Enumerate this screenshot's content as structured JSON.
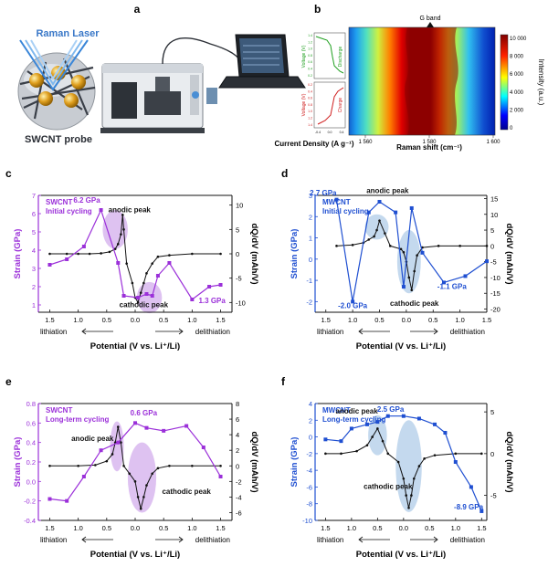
{
  "panel_labels": {
    "a": "a",
    "b": "b",
    "c": "c",
    "d": "d",
    "e": "e",
    "f": "f"
  },
  "panel_a": {
    "laser_label": "Raman Laser",
    "probe_label": "SWCNT probe",
    "colors": {
      "laser": "#3a86d8",
      "particle": "#e0a020"
    }
  },
  "panel_b": {
    "peak_label": "G band",
    "xlabel": "Raman shift (cm⁻¹)",
    "colorbar_label": "Intensity (a.u.)",
    "left_xlabel": "Current Density (A g⁻¹)",
    "voltage_label": "Voltage (V)",
    "discharge_label": "Discharge",
    "charge_label": "Charge",
    "xticks": [
      "1 560",
      "1 580",
      "1 600"
    ],
    "colorbar_ticks": [
      "0",
      "2 000",
      "4 000",
      "6 000",
      "8 000",
      "10 000"
    ],
    "left_ticks": [
      "-0.4",
      "0.0",
      "0.4"
    ],
    "voltage_ticks_top": [
      "1.4",
      "1.2",
      "1.0",
      "0.8",
      "0.6",
      "0.4",
      "0.2"
    ],
    "voltage_ticks_bottom": [
      "0.2",
      "0.4",
      "0.6",
      "0.8",
      "1.0",
      "1.2",
      "1.4"
    ],
    "cb_ticks": [
      "0",
      "2000",
      "4000",
      "6000",
      "8000",
      "10000"
    ],
    "colormap": "jet"
  },
  "chart_data": [
    {
      "panel": "c",
      "type": "line",
      "title": "SWCNT",
      "subtitle": "Initial cycling",
      "xlabel": "Potential (V vs. Li⁺/Li)",
      "ylabel_left": "Strain (GPa)",
      "ylabel_right": "dQ/dV (mAh/V)",
      "xlim": [
        1.7,
        -1.7
      ],
      "ylim_left": [
        0.6,
        7
      ],
      "ylim_right": [
        -12,
        12
      ],
      "xticks_labels": [
        "1.5",
        "1.0",
        "0.5",
        "0.0",
        "0.5",
        "1.0",
        "1.5"
      ],
      "yticks_left": [
        "1",
        "2",
        "3",
        "4",
        "5",
        "6",
        "7"
      ],
      "yticks_right": [
        "-10",
        "-5",
        "0",
        "5",
        "10"
      ],
      "direction_labels": {
        "left": "lithiation",
        "right": "delithiation"
      },
      "annotations": [
        "anodic peak",
        "6.2 GPa",
        "1.3 GPa",
        "cathodic peak"
      ],
      "strain_color": "#9b30d9",
      "strain": {
        "x": [
          -1.5,
          -1.3,
          -1.0,
          -0.6,
          -0.4,
          -0.3,
          -0.2,
          -0.05,
          0.2,
          0.3,
          0.6,
          0.9,
          1.2,
          1.5
        ],
        "y": [
          2.1,
          2.0,
          1.3,
          3.3,
          2.6,
          1.5,
          1.6,
          1.4,
          1.5,
          3.3,
          6.2,
          4.2,
          3.5,
          3.2
        ]
      },
      "dqdv": {
        "x": [
          -1.5,
          -1.0,
          -0.6,
          -0.4,
          -0.3,
          -0.2,
          -0.15,
          -0.1,
          -0.05,
          0.0,
          0.05,
          0.15,
          0.2,
          0.22,
          0.25,
          0.3,
          0.35,
          0.45,
          0.6,
          0.8,
          1.0,
          1.2,
          1.5
        ],
        "y": [
          0,
          0,
          -0.3,
          -0.6,
          -2,
          -4,
          -6,
          -8,
          -10,
          -9,
          -6,
          -2,
          5,
          8,
          4,
          2,
          1,
          0.4,
          0.1,
          0,
          0,
          0,
          0
        ]
      }
    },
    {
      "panel": "d",
      "type": "line",
      "title": "MWCNT",
      "subtitle": "Initial cycling",
      "xlabel": "Potential (V vs. Li⁺/Li)",
      "ylabel_left": "Strain (GPa)",
      "ylabel_right": "dQ/dV (mAh/V)",
      "xlim": [
        1.7,
        -1.5
      ],
      "ylim_left": [
        -2.5,
        3
      ],
      "ylim_right": [
        -21,
        16
      ],
      "xticks_labels": [
        "1.5",
        "1.0",
        "0.5",
        "0.0",
        "0.5",
        "1.0",
        "1.5"
      ],
      "yticks_left": [
        "-2",
        "-1",
        "0",
        "1",
        "2",
        "3"
      ],
      "yticks_right": [
        "-20",
        "-15",
        "-10",
        "-5",
        "0",
        "5",
        "10",
        "15"
      ],
      "direction_labels": {
        "left": "lithiation",
        "right": "delithiation"
      },
      "annotations": [
        "anodic peak",
        "2.7 GPa",
        "-1.1 GPa",
        "-2.0 GPa",
        "cathodic peak"
      ],
      "strain_color": "#1f4fd1",
      "strain": {
        "x": [
          -1.5,
          -1.1,
          -0.7,
          -0.3,
          -0.1,
          0.05,
          0.2,
          0.5,
          0.7,
          1.0,
          1.3
        ],
        "y": [
          -0.1,
          -0.8,
          -1.1,
          0.3,
          2.4,
          -1.3,
          2.2,
          2.7,
          2.2,
          -2.0,
          2.8
        ]
      },
      "dqdv": {
        "x": [
          -1.5,
          -1.0,
          -0.6,
          -0.3,
          -0.2,
          -0.15,
          -0.1,
          -0.05,
          0.0,
          0.05,
          0.1,
          0.3,
          0.4,
          0.5,
          0.55,
          0.6,
          0.7,
          0.8,
          1.0,
          1.3
        ],
        "y": [
          0,
          0,
          0,
          -0.5,
          -3,
          -8,
          -14,
          -10,
          -5,
          -2,
          -1,
          0,
          4,
          8,
          5,
          3,
          2,
          1,
          0.3,
          0
        ]
      }
    },
    {
      "panel": "e",
      "type": "line",
      "title": "SWCNT",
      "subtitle": "Long-term cycling",
      "xlabel": "Potential (V vs. Li⁺/Li)",
      "ylabel_left": "Strain (GPa)",
      "ylabel_right": "dQ/dV (mAh/V)",
      "xlim": [
        1.7,
        -1.7
      ],
      "ylim_left": [
        -0.4,
        0.8
      ],
      "ylim_right": [
        -7,
        8
      ],
      "xticks_labels": [
        "1.5",
        "1.0",
        "0.5",
        "0.0",
        "0.5",
        "1.0",
        "1.5"
      ],
      "yticks_left": [
        "-0.4",
        "-0.2",
        "0.0",
        "0.2",
        "0.4",
        "0.6",
        "0.8"
      ],
      "yticks_right": [
        "-6",
        "-4",
        "-2",
        "0",
        "2",
        "4",
        "6",
        "8"
      ],
      "direction_labels": {
        "left": "lithiation",
        "right": "delithiation"
      },
      "annotations": [
        "0.6 GPa",
        "anodic peak",
        "cathodic peak"
      ],
      "strain_color": "#9b30d9",
      "strain": {
        "x": [
          -1.5,
          -1.2,
          -0.9,
          -0.5,
          -0.2,
          0.0,
          0.3,
          0.6,
          0.9,
          1.2,
          1.5
        ],
        "y": [
          0.05,
          0.35,
          0.57,
          0.52,
          0.55,
          0.6,
          0.4,
          0.32,
          0.05,
          -0.2,
          -0.18
        ]
      },
      "dqdv": {
        "x": [
          -1.5,
          -1.0,
          -0.6,
          -0.4,
          -0.3,
          -0.2,
          -0.15,
          -0.1,
          -0.05,
          0.0,
          0.1,
          0.2,
          0.25,
          0.3,
          0.35,
          0.4,
          0.5,
          0.7,
          1.0,
          1.5
        ],
        "y": [
          0,
          0,
          0,
          -0.3,
          -1,
          -2.5,
          -4,
          -5.5,
          -4,
          -2,
          -1,
          0,
          3,
          5,
          3,
          1.5,
          0.6,
          0.1,
          0,
          0
        ]
      }
    },
    {
      "panel": "f",
      "type": "line",
      "title": "MWCNT",
      "subtitle": "Long-term cycling",
      "xlabel": "Potential (V vs. Li⁺/Li)",
      "ylabel_left": "Strain (GPa)",
      "ylabel_right": "dQ/dV (mAh/V)",
      "xlim": [
        1.7,
        -1.6
      ],
      "ylim_left": [
        -10,
        4
      ],
      "ylim_right": [
        -8,
        6
      ],
      "xticks_labels": [
        "1.5",
        "1.0",
        "0.5",
        "0.0",
        "0.5",
        "1.0",
        "1.5"
      ],
      "yticks_left": [
        "-10",
        "-8",
        "-6",
        "-4",
        "-2",
        "0",
        "2",
        "4"
      ],
      "yticks_right": [
        "-5",
        "0",
        "5"
      ],
      "direction_labels": {
        "left": "lithiation",
        "right": "delithiation"
      },
      "annotations": [
        "2.5 GPa",
        "anodic peak",
        "-8.9 GPa",
        "cathodic peak"
      ],
      "strain_color": "#1f4fd1",
      "strain": {
        "x": [
          -1.5,
          -1.3,
          -1.0,
          -0.8,
          -0.6,
          -0.3,
          0.0,
          0.3,
          0.5,
          0.7,
          1.0,
          1.2,
          1.5
        ],
        "y": [
          -8.9,
          -6.0,
          -3.0,
          0.5,
          1.5,
          2.2,
          2.5,
          2.5,
          1.8,
          1.5,
          1.0,
          -0.5,
          -0.3
        ]
      },
      "dqdv": {
        "x": [
          -1.5,
          -1.0,
          -0.6,
          -0.4,
          -0.3,
          -0.2,
          -0.15,
          -0.1,
          -0.05,
          0.0,
          0.1,
          0.3,
          0.4,
          0.5,
          0.6,
          0.7,
          0.9,
          1.2,
          1.5
        ],
        "y": [
          0,
          0,
          -0.2,
          -0.6,
          -1.5,
          -3,
          -5,
          -6.5,
          -5,
          -3,
          -1,
          0,
          1.5,
          3,
          2,
          1,
          0.3,
          0,
          0
        ]
      }
    }
  ]
}
